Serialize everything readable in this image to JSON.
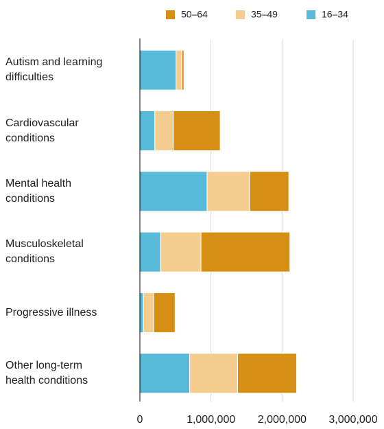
{
  "chart_data": {
    "type": "stacked_barh",
    "categories": [
      "Autism and learning difficulties",
      "Cardiovascular conditions",
      "Mental health conditions",
      "Musculoskeletal conditions",
      "Progressive illness",
      "Other long-term health conditions"
    ],
    "series": [
      {
        "name": "16–34",
        "color": "#56bad8",
        "values": [
          510000,
          210000,
          945000,
          290000,
          50000,
          700000
        ]
      },
      {
        "name": "35–49",
        "color": "#f5cd8e",
        "values": [
          80000,
          260000,
          600000,
          570000,
          145000,
          675000
        ]
      },
      {
        "name": "50–64",
        "color": "#d68f12",
        "values": [
          30000,
          660000,
          550000,
          1250000,
          300000,
          830000
        ]
      }
    ],
    "xlim": [
      0,
      3000000
    ],
    "xticks": [
      0,
      {
        "value": 1000000,
        "label": "1,000,000"
      },
      {
        "value": 2000000,
        "label": "2,000,000"
      },
      {
        "value": 3000000,
        "label": "3,000,000"
      }
    ],
    "grid": true,
    "legend": "top-right"
  }
}
